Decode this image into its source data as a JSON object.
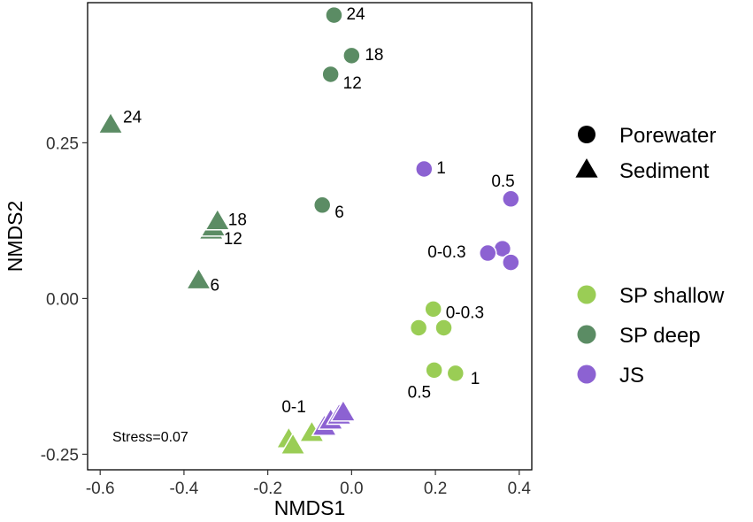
{
  "chart_data": {
    "type": "scatter",
    "title": "",
    "xlabel": "NMDS1",
    "ylabel": "NMDS2",
    "xlim": [
      -0.63,
      0.43
    ],
    "ylim": [
      -0.275,
      0.475
    ],
    "x_ticks": [
      -0.6,
      -0.4,
      -0.2,
      0.0,
      0.2,
      0.4
    ],
    "x_tick_labels": [
      "-0.6",
      "-0.4",
      "-0.2",
      "0.0",
      "0.2",
      "0.4"
    ],
    "y_ticks": [
      -0.25,
      0.0,
      0.25
    ],
    "y_tick_labels": [
      "-0.25",
      "0.00",
      "0.25"
    ],
    "grid": false,
    "annotation": "Stress=0.07",
    "colors": {
      "SP shallow": "#9acd55",
      "SP deep": "#5b8c64",
      "JS": "#8c62d2"
    },
    "legend_shape": {
      "placement": "right",
      "entries": [
        {
          "label": "Porewater",
          "shape": "circle"
        },
        {
          "label": "Sediment",
          "shape": "triangle"
        }
      ]
    },
    "legend_color": {
      "placement": "right",
      "entries": [
        "SP shallow",
        "SP deep",
        "JS"
      ]
    },
    "series": [
      {
        "name": "SP deep",
        "shape": "triangle",
        "points": [
          {
            "x": -0.575,
            "y": 0.28,
            "label": "24"
          },
          {
            "x": -0.335,
            "y": 0.11,
            "label": "12"
          },
          {
            "x": -0.33,
            "y": 0.115,
            "label": ""
          },
          {
            "x": -0.32,
            "y": 0.125,
            "label": "18"
          },
          {
            "x": -0.365,
            "y": 0.03,
            "label": "6"
          }
        ]
      },
      {
        "name": "SP deep",
        "shape": "circle",
        "points": [
          {
            "x": -0.042,
            "y": 0.455,
            "label": "24"
          },
          {
            "x": 0.0,
            "y": 0.39,
            "label": "18"
          },
          {
            "x": -0.05,
            "y": 0.36,
            "label": "12"
          },
          {
            "x": -0.07,
            "y": 0.15,
            "label": "6"
          }
        ]
      },
      {
        "name": "JS",
        "shape": "circle",
        "points": [
          {
            "x": 0.173,
            "y": 0.208,
            "label": "1"
          },
          {
            "x": 0.38,
            "y": 0.16,
            "label": "0.5"
          },
          {
            "x": 0.36,
            "y": 0.08,
            "label": ""
          },
          {
            "x": 0.325,
            "y": 0.073,
            "label": "0-0.3"
          },
          {
            "x": 0.38,
            "y": 0.058,
            "label": ""
          }
        ]
      },
      {
        "name": "SP shallow",
        "shape": "circle",
        "points": [
          {
            "x": 0.195,
            "y": -0.017,
            "label": "0-0.3"
          },
          {
            "x": 0.16,
            "y": -0.047,
            "label": ""
          },
          {
            "x": 0.22,
            "y": -0.047,
            "label": ""
          },
          {
            "x": 0.197,
            "y": -0.115,
            "label": "0.5"
          },
          {
            "x": 0.248,
            "y": -0.12,
            "label": "1"
          }
        ]
      },
      {
        "name": "SP shallow",
        "shape": "triangle",
        "points": [
          {
            "x": -0.15,
            "y": -0.225,
            "label": "0-1"
          },
          {
            "x": -0.14,
            "y": -0.235,
            "label": ""
          },
          {
            "x": -0.095,
            "y": -0.215,
            "label": ""
          }
        ]
      },
      {
        "name": "JS",
        "shape": "triangle",
        "points": [
          {
            "x": -0.065,
            "y": -0.205,
            "label": ""
          },
          {
            "x": -0.05,
            "y": -0.195,
            "label": ""
          },
          {
            "x": -0.03,
            "y": -0.187,
            "label": ""
          },
          {
            "x": -0.02,
            "y": -0.182,
            "label": ""
          }
        ]
      }
    ]
  }
}
